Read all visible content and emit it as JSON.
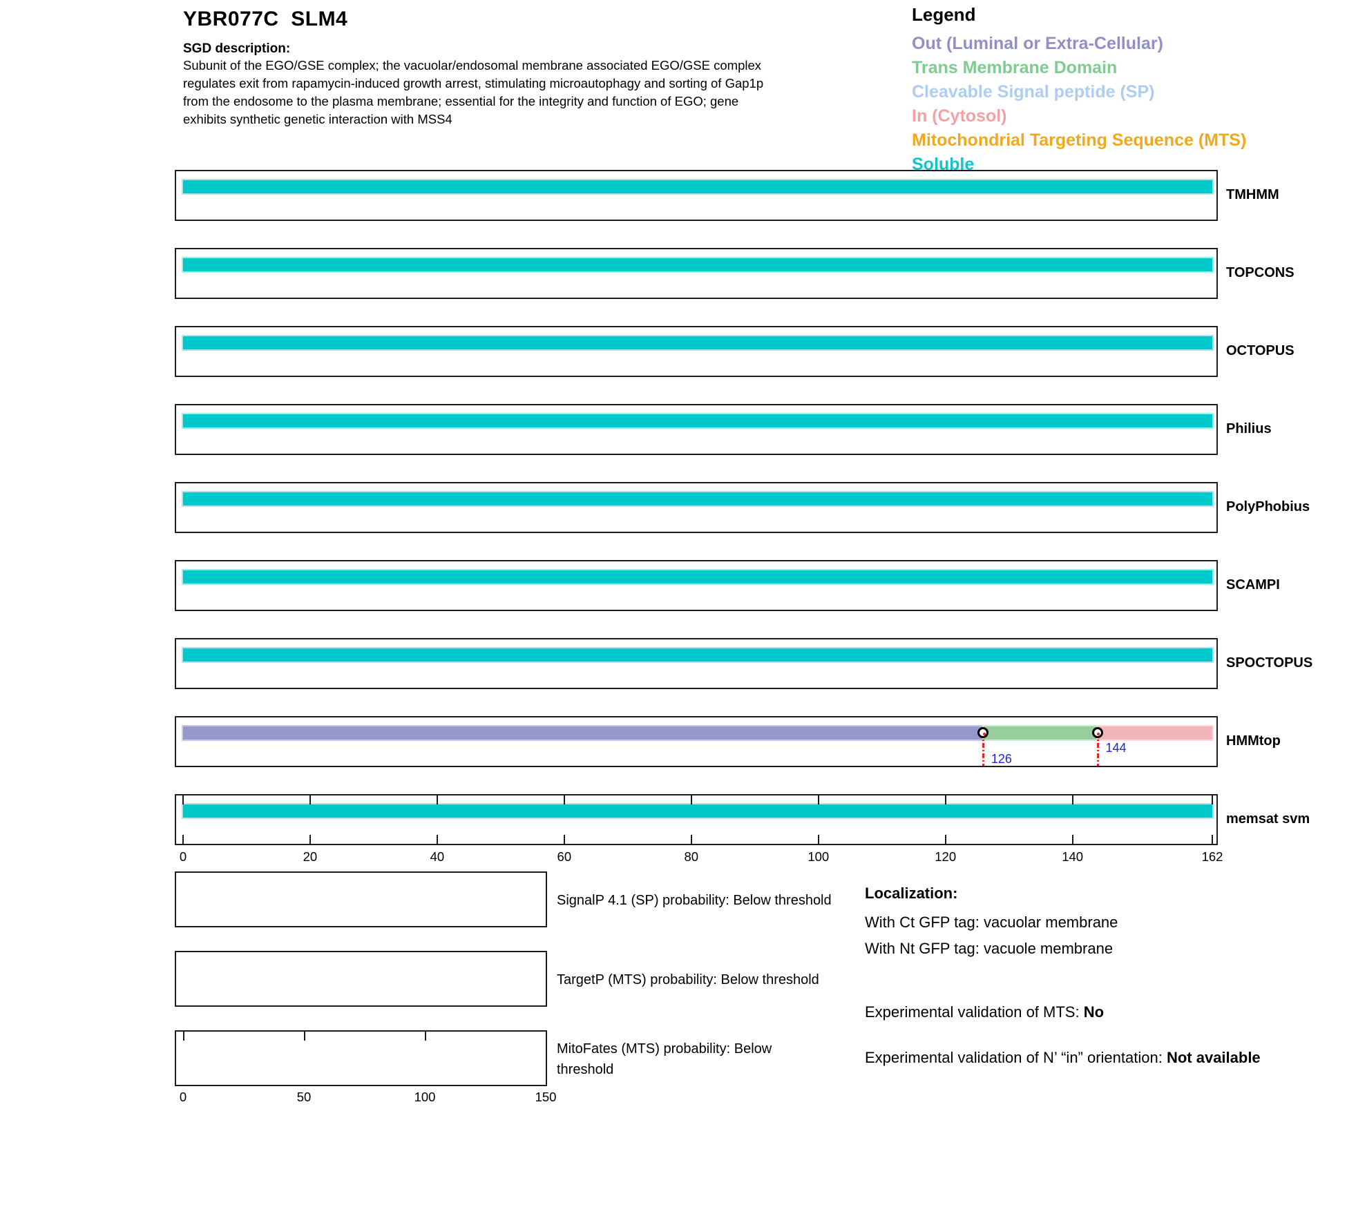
{
  "header": {
    "title": "YBR077C  SLM4",
    "sgd_label": "SGD description:",
    "description": "Subunit of the EGO/GSE complex; the vacuolar/endosomal membrane associated EGO/GSE complex regulates exit from rapamycin-induced growth arrest, stimulating microautophagy and sorting of Gap1p from the endosome to the plasma membrane; essential for the integrity and function of EGO; gene exhibits synthetic genetic interaction with MSS4"
  },
  "legend": {
    "title": "Legend",
    "items": [
      {
        "label": "Out (Luminal or Extra-Cellular)",
        "color": "#8f90c6"
      },
      {
        "label": "Trans Membrane Domain",
        "color": "#7fcb90"
      },
      {
        "label": "Cleavable Signal peptide (SP)",
        "color": "#aecdf1"
      },
      {
        "label": "In (Cytosol)",
        "color": "#f2a1a4"
      },
      {
        "label": "Mitochondrial Targeting Sequence (MTS)",
        "color": "#f0a81c"
      },
      {
        "label": "Soluble",
        "color": "#0fc6c8"
      }
    ]
  },
  "chart_data": {
    "type": "bar",
    "title": "Membrane topology predictions per residue (horizontal span tracks)",
    "x_range": [
      0,
      162
    ],
    "x_ticks": [
      0,
      20,
      40,
      60,
      80,
      100,
      120,
      140,
      162
    ],
    "grid": false,
    "class_colors": {
      "Soluble": {
        "fill": "#00c9cb",
        "halo": "#a5eaeb"
      },
      "Out": {
        "fill": "#9697cb",
        "halo": "#c9c9e4"
      },
      "TM": {
        "fill": "#98cd9e",
        "halo": "#cfead3"
      },
      "In": {
        "fill": "#f2b6ba",
        "halo": "#fadcde"
      }
    },
    "tracks": [
      {
        "name": "TMHMM",
        "segments": [
          {
            "start": 0,
            "end": 162,
            "class": "Soluble"
          }
        ]
      },
      {
        "name": "TOPCONS",
        "segments": [
          {
            "start": 0,
            "end": 162,
            "class": "Soluble"
          }
        ]
      },
      {
        "name": "OCTOPUS",
        "segments": [
          {
            "start": 0,
            "end": 162,
            "class": "Soluble"
          }
        ]
      },
      {
        "name": "Philius",
        "segments": [
          {
            "start": 0,
            "end": 162,
            "class": "Soluble"
          }
        ]
      },
      {
        "name": "PolyPhobius",
        "segments": [
          {
            "start": 0,
            "end": 162,
            "class": "Soluble"
          }
        ]
      },
      {
        "name": "SCAMPI",
        "segments": [
          {
            "start": 0,
            "end": 162,
            "class": "Soluble"
          }
        ]
      },
      {
        "name": "SPOCTOPUS",
        "segments": [
          {
            "start": 0,
            "end": 162,
            "class": "Soluble"
          }
        ]
      },
      {
        "name": "HMMtop",
        "segments": [
          {
            "start": 0,
            "end": 126,
            "class": "Out"
          },
          {
            "start": 126,
            "end": 144,
            "class": "TM"
          },
          {
            "start": 144,
            "end": 162,
            "class": "In"
          }
        ],
        "markers": [
          {
            "pos": 126,
            "label": "126"
          },
          {
            "pos": 144,
            "label": "144"
          }
        ]
      },
      {
        "name": "memsat svm",
        "segments": [
          {
            "start": 0,
            "end": 162,
            "class": "Soluble"
          }
        ],
        "ruler": true
      }
    ],
    "marker_label_color": "#2323dd",
    "marker_line_color": "#ee2222"
  },
  "probability_panels": [
    {
      "label": "SignalP 4.1 (SP) probability: Below threshold"
    },
    {
      "label": "TargetP (MTS) probability: Below threshold"
    },
    {
      "label": "MitoFates (MTS) probability: Below threshold",
      "x_max": 150,
      "top_ticks": [
        0,
        50,
        100
      ],
      "x_ticks": [
        0,
        50,
        100,
        150
      ]
    }
  ],
  "localization": {
    "title": "Localization:",
    "lines": [
      {
        "text": "With Ct GFP tag: vacuolar membrane",
        "bold": ""
      },
      {
        "text": "With Nt GFP tag: vacuole membrane",
        "bold": ""
      },
      {
        "text": "Experimental validation of MTS: ",
        "bold": "No"
      },
      {
        "text": "Experimental validation of N’ “in” orientation: ",
        "bold": "Not available"
      }
    ]
  }
}
